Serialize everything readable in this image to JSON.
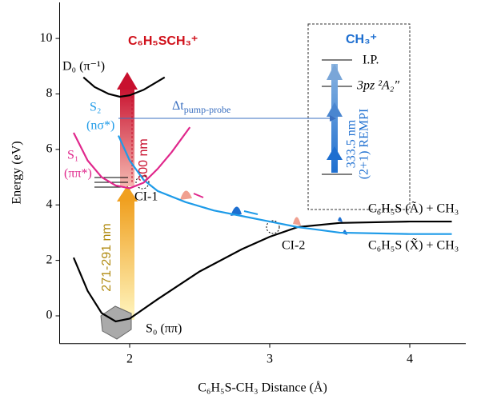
{
  "chart_data": {
    "type": "line",
    "x_label": "C₆H₅S-CH₃ Distance (Å)",
    "y_label": "Energy (eV)",
    "xlim": [
      1.5,
      4.4
    ],
    "ylim": [
      -1,
      11.3
    ],
    "xticks": [
      2,
      3,
      4
    ],
    "yticks": [
      0,
      2,
      4,
      6,
      8,
      10
    ],
    "series": [
      {
        "name": "S₀ (ππ)",
        "color": "#000000",
        "x": [
          1.6,
          1.7,
          1.8,
          1.9,
          2.0,
          2.2,
          2.5,
          2.8,
          3.0,
          3.2,
          3.5,
          4.0,
          4.3
        ],
        "values": [
          2.1,
          0.9,
          0.1,
          -0.2,
          -0.1,
          0.6,
          1.6,
          2.4,
          2.85,
          3.2,
          3.35,
          3.4,
          3.4
        ]
      },
      {
        "name": "S₂",
        "color": "#1e9be8",
        "x": [
          1.92,
          2.0,
          2.1,
          2.2,
          2.4,
          2.6,
          2.8,
          3.0,
          3.2,
          3.5,
          4.0,
          4.3
        ],
        "values": [
          6.5,
          5.6,
          4.9,
          4.5,
          4.1,
          3.8,
          3.6,
          3.4,
          3.2,
          3.0,
          2.95,
          2.95
        ]
      },
      {
        "name": "S₁",
        "color": "#e0288c",
        "x": [
          1.6,
          1.7,
          1.8,
          1.9,
          2.0,
          2.1,
          2.2,
          2.3,
          2.43
        ],
        "values": [
          6.6,
          5.6,
          5.0,
          4.7,
          4.6,
          4.8,
          5.3,
          5.9,
          6.8
        ]
      },
      {
        "name": "D₀ (π⁻¹)",
        "color": "#000000",
        "x": [
          1.67,
          1.75,
          1.85,
          1.93,
          2.0,
          2.1,
          2.25
        ],
        "values": [
          8.6,
          8.25,
          8.0,
          7.9,
          7.95,
          8.15,
          8.6
        ]
      }
    ],
    "annotations": {
      "cation": "C₆H₅SCH₃⁺",
      "s2_char": "(nσ*)",
      "s1_char": "(ππ*)",
      "pump": "300 nm",
      "probe": "271-291 nm",
      "ci1": "CI-1",
      "ci2": "CI-2",
      "asym_a": "C₆H₅S (Ã) + CH₃",
      "asym_x": "C₆H₅S (X̃) + CH₃",
      "delay": "Δt",
      "delay_sub": "pump-probe",
      "methyl_cation": "CH₃⁺",
      "ip": "I.P.",
      "rydberg": "3pz ²A₂″",
      "rempi_wl": "333.5 nm",
      "rempi": "(2+1) REMPI"
    }
  }
}
